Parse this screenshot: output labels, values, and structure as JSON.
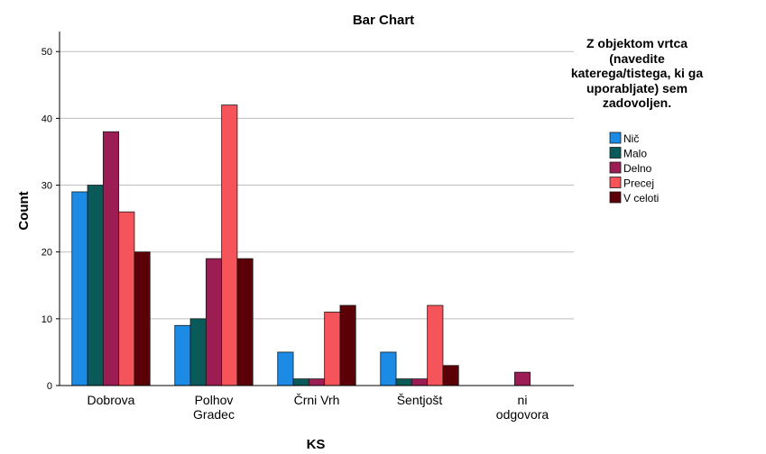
{
  "chart_data": {
    "type": "bar",
    "title": "Bar Chart",
    "xlabel": "KS",
    "ylabel": "Count",
    "ylim": [
      0,
      53
    ],
    "yticks": [
      0,
      10,
      20,
      30,
      40,
      50
    ],
    "grid": true,
    "legend_position": "right",
    "legend_title": "Z objektom vrtca (navedite katerega/tistega, ki ga uporabljate) sem zadovoljen.",
    "categories": [
      "Dobrova",
      "Polhov Gradec",
      "Črni Vrh",
      "Šentjošt",
      "ni odgovora"
    ],
    "series": [
      {
        "name": "Nič",
        "color": "#1b8be6",
        "values": [
          29,
          9,
          5,
          5,
          null
        ]
      },
      {
        "name": "Malo",
        "color": "#0b5a5a",
        "values": [
          30,
          10,
          1,
          1,
          null
        ]
      },
      {
        "name": "Delno",
        "color": "#9b1d54",
        "values": [
          38,
          19,
          1,
          1,
          2
        ]
      },
      {
        "name": "Precej",
        "color": "#f5545a",
        "values": [
          26,
          42,
          11,
          12,
          null
        ]
      },
      {
        "name": "V celoti",
        "color": "#5c0008",
        "values": [
          20,
          19,
          12,
          3,
          null
        ]
      }
    ]
  }
}
